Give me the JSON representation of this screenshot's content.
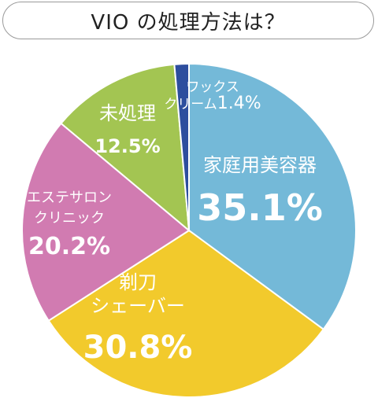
{
  "title": "VIO の処理方法は？",
  "chart_data": {
    "type": "pie",
    "start": "top, clockwise",
    "slices": [
      {
        "label_lines": [
          "家庭用美容器"
        ],
        "value": 35.1,
        "value_text": "35.1%",
        "color": "#74B9D8"
      },
      {
        "label_lines": [
          "剃刀",
          "シェーバー"
        ],
        "value": 30.8,
        "value_text": "30.8%",
        "color": "#F2CA2C"
      },
      {
        "label_lines": [
          "エステサロン",
          "クリニック"
        ],
        "value": 20.2,
        "value_text": "20.2%",
        "color": "#D17BB1"
      },
      {
        "label_lines": [
          "未処理"
        ],
        "value": 12.5,
        "value_text": "12.5%",
        "color": "#A3C552"
      },
      {
        "label_lines": [
          "ワックス",
          "クリーム"
        ],
        "value": 1.4,
        "value_text": "1.4%",
        "color": "#2D4E9E"
      }
    ]
  }
}
